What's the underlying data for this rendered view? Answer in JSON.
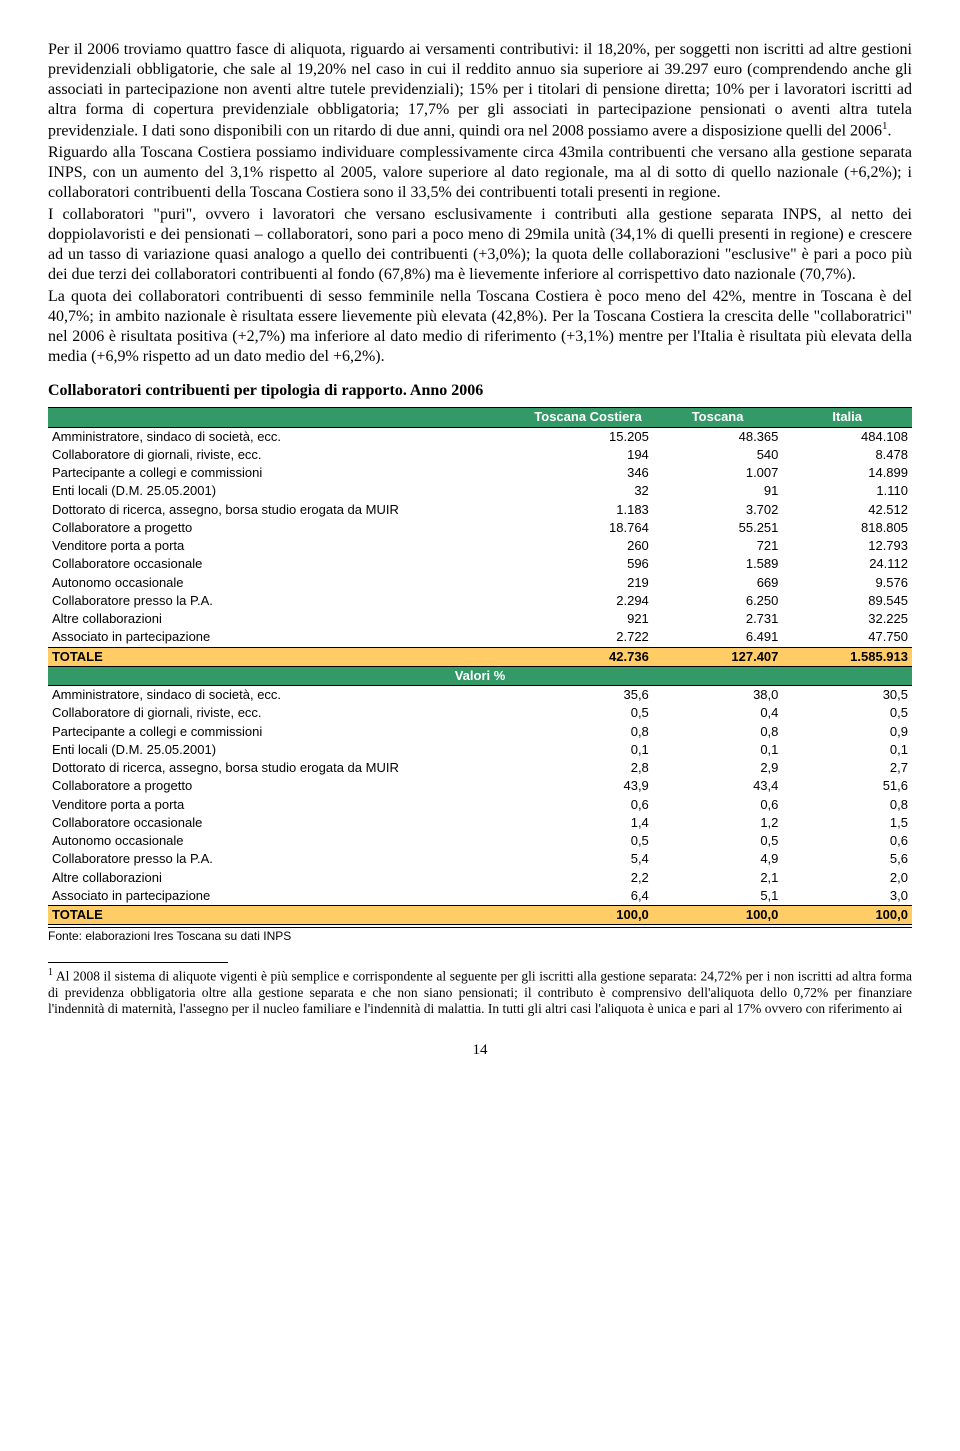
{
  "paragraphs": [
    "Per il 2006 troviamo quattro fasce di aliquota, riguardo ai versamenti contributivi: il 18,20%, per soggetti non iscritti ad altre gestioni previdenziali obbligatorie, che sale al 19,20% nel caso in cui il reddito annuo sia superiore ai 39.297 euro (comprendendo anche gli associati in partecipazione non aventi altre tutele previdenziali); 15% per i titolari di pensione diretta; 10% per i lavoratori iscritti ad altra forma di copertura previdenziale obbligatoria; 17,7% per gli associati in partecipazione pensionati o aventi altra tutela previdenziale. I dati sono disponibili con un ritardo di due anni, quindi ora nel 2008 possiamo avere a disposizione quelli del 2006",
    "Riguardo alla Toscana Costiera possiamo individuare complessivamente circa 43mila contribuenti che versano alla gestione separata INPS, con un aumento del 3,1% rispetto al 2005, valore superiore al dato regionale, ma al di sotto di quello nazionale (+6,2%); i collaboratori contribuenti della Toscana Costiera sono il 33,5% dei contribuenti totali presenti in regione.",
    "I collaboratori \"puri\", ovvero i lavoratori che versano esclusivamente i contributi alla gestione separata INPS, al netto dei doppiolavoristi e dei pensionati – collaboratori, sono pari a poco meno di 29mila unità (34,1% di quelli presenti in regione) e crescere ad un tasso di variazione quasi analogo a quello dei contribuenti (+3,0%); la quota delle collaborazioni \"esclusive\" è pari a poco più dei due terzi dei collaboratori contribuenti al fondo (67,8%) ma è lievemente inferiore al corrispettivo dato nazionale (70,7%).",
    "La quota dei collaboratori contribuenti di sesso femminile nella Toscana Costiera è poco meno del 42%, mentre in Toscana è del 40,7%; in ambito nazionale è risultata essere lievemente più elevata (42,8%). Per la Toscana Costiera la crescita delle \"collaboratrici\" nel 2006 è risultata positiva (+2,7%) ma inferiore al dato medio di riferimento (+3,1%) mentre per l'Italia è risultata più elevata della media (+6,9% rispetto ad un dato medio del +6,2%)."
  ],
  "table_title": "Collaboratori contribuenti per tipologia di rapporto. Anno 2006",
  "columns": [
    "",
    "Toscana Costiera",
    "Toscana",
    "Italia"
  ],
  "rows_abs": [
    [
      "Amministratore, sindaco di società, ecc.",
      "15.205",
      "48.365",
      "484.108"
    ],
    [
      "Collaboratore di giornali, riviste, ecc.",
      "194",
      "540",
      "8.478"
    ],
    [
      "Partecipante a collegi e commissioni",
      "346",
      "1.007",
      "14.899"
    ],
    [
      "Enti locali (D.M. 25.05.2001)",
      "32",
      "91",
      "1.110"
    ],
    [
      "Dottorato di ricerca, assegno, borsa studio erogata da MUIR",
      "1.183",
      "3.702",
      "42.512"
    ],
    [
      "Collaboratore a progetto",
      "18.764",
      "55.251",
      "818.805"
    ],
    [
      "Venditore porta a porta",
      "260",
      "721",
      "12.793"
    ],
    [
      "Collaboratore occasionale",
      "596",
      "1.589",
      "24.112"
    ],
    [
      "Autonomo occasionale",
      "219",
      "669",
      "9.576"
    ],
    [
      "Collaboratore presso la P.A.",
      "2.294",
      "6.250",
      "89.545"
    ],
    [
      "Altre collaborazioni",
      "921",
      "2.731",
      "32.225"
    ],
    [
      "Associato in partecipazione",
      "2.722",
      "6.491",
      "47.750"
    ]
  ],
  "total_abs": [
    "TOTALE",
    "42.736",
    "127.407",
    "1.585.913"
  ],
  "valori_label": "Valori %",
  "rows_pct": [
    [
      "Amministratore, sindaco di società, ecc.",
      "35,6",
      "38,0",
      "30,5"
    ],
    [
      "Collaboratore di giornali, riviste, ecc.",
      "0,5",
      "0,4",
      "0,5"
    ],
    [
      "Partecipante a collegi e commissioni",
      "0,8",
      "0,8",
      "0,9"
    ],
    [
      "Enti locali (D.M. 25.05.2001)",
      "0,1",
      "0,1",
      "0,1"
    ],
    [
      "Dottorato di ricerca, assegno, borsa studio erogata da MUIR",
      "2,8",
      "2,9",
      "2,7"
    ],
    [
      "Collaboratore a progetto",
      "43,9",
      "43,4",
      "51,6"
    ],
    [
      "Venditore porta a porta",
      "0,6",
      "0,6",
      "0,8"
    ],
    [
      "Collaboratore occasionale",
      "1,4",
      "1,2",
      "1,5"
    ],
    [
      "Autonomo occasionale",
      "0,5",
      "0,5",
      "0,6"
    ],
    [
      "Collaboratore presso la P.A.",
      "5,4",
      "4,9",
      "5,6"
    ],
    [
      "Altre collaborazioni",
      "2,2",
      "2,1",
      "2,0"
    ],
    [
      "Associato in partecipazione",
      "6,4",
      "5,1",
      "3,0"
    ]
  ],
  "total_pct": [
    "TOTALE",
    "100,0",
    "100,0",
    "100,0"
  ],
  "fonte": "Fonte: elaborazioni Ires Toscana su dati INPS",
  "footnote_marker": "1",
  "footnote_text": " Al 2008 il sistema di aliquote vigenti è più semplice e corrispondente al seguente per gli iscritti alla gestione separata: 24,72% per i non iscritti ad altra forma di previdenza obbligatoria oltre alla gestione separata e che non siano pensionati; il contributo è comprensivo dell'aliquota dello 0,72% per finanziare l'indennità di maternità, l'assegno per il nucleo familiare e l'indennità di malattia. In tutti gli altri casi l'aliquota è unica e pari al 17% ovvero con riferimento ai",
  "page_number": "14",
  "colors": {
    "header_bg": "#339966",
    "header_fg": "#ffffff",
    "total_bg": "#ffcc66",
    "border": "#000000",
    "text": "#000000",
    "background": "#ffffff"
  }
}
